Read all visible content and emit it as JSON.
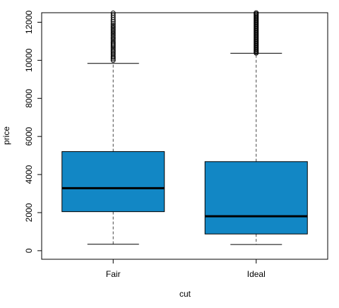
{
  "chart_data": {
    "type": "boxplot",
    "xlabel": "cut",
    "ylabel": "price",
    "ylim": [
      -450,
      12500
    ],
    "y_ticks": [
      0,
      2000,
      4000,
      6000,
      8000,
      10000,
      12000
    ],
    "y_tick_labels": [
      "0",
      "2000",
      "4000",
      "6000",
      "8000",
      "10000",
      "12000"
    ],
    "box_color": "#1287c5",
    "categories": [
      "Fair",
      "Ideal"
    ],
    "boxes": [
      {
        "category": "Fair",
        "whisker_low": 337,
        "q1": 2050,
        "median": 3282,
        "q3": 5206,
        "whisker_high": 9836,
        "outliers": [
          10000,
          10080,
          10150,
          10220,
          10300,
          10370,
          10450,
          10520,
          10600,
          10680,
          10760,
          10830,
          10900,
          10980,
          11060,
          11140,
          11220,
          11300,
          11380,
          11460,
          11540,
          11620,
          11700,
          11780,
          11860,
          11950,
          12050,
          12150,
          12260,
          12370,
          12480
        ]
      },
      {
        "category": "Ideal",
        "whisker_low": 326,
        "q1": 878,
        "median": 1810,
        "q3": 4678,
        "whisker_high": 10370,
        "outlier_range": [
          10380,
          12500
        ]
      }
    ]
  }
}
